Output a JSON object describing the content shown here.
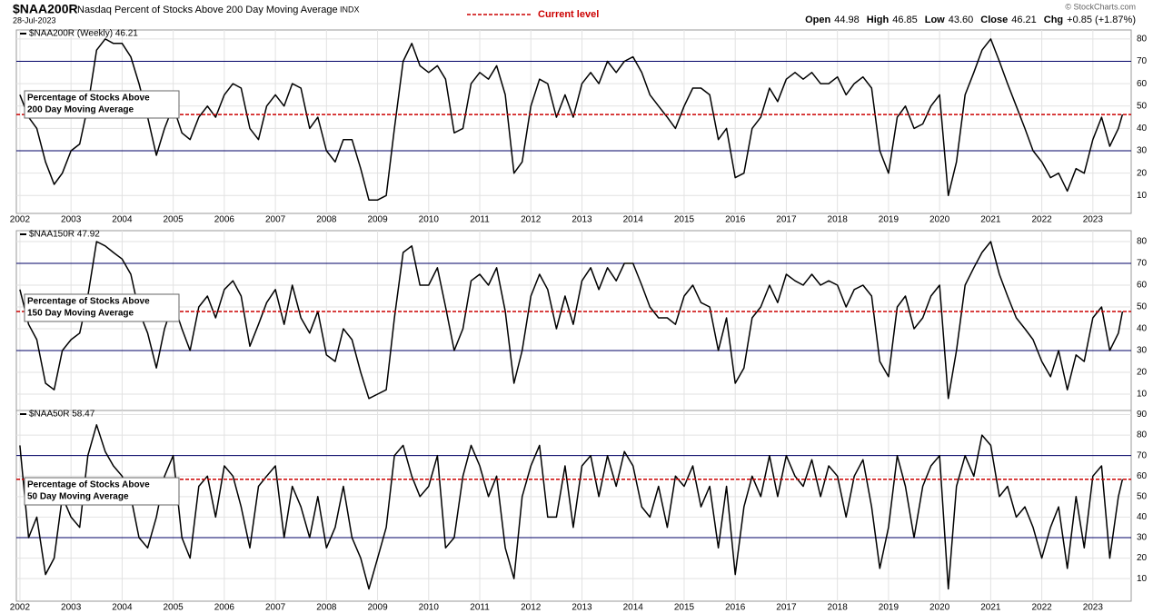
{
  "header": {
    "symbol": "$NAA200R",
    "subtitle": "Nasdaq Percent of Stocks Above 200 Day Moving Average",
    "exchange": "INDX",
    "date": "28-Jul-2023",
    "legend": "Current level",
    "copyright": "© StockCharts.com",
    "quote": [
      [
        "Open",
        "44.98"
      ],
      [
        "High",
        "46.85"
      ],
      [
        "Low",
        "43.60"
      ],
      [
        "Close",
        "46.21"
      ],
      [
        "Chg",
        "+0.85 (+1.87%)"
      ]
    ]
  },
  "chart_data": [
    {
      "type": "line",
      "box": [
        "Percentage of Stocks Above",
        "200 Day Moving Average"
      ],
      "x": [
        2002,
        2002.17,
        2002.33,
        2002.5,
        2002.67,
        2002.83,
        2003,
        2003.17,
        2003.33,
        2003.5,
        2003.67,
        2003.83,
        2004,
        2004.17,
        2004.33,
        2004.5,
        2004.67,
        2004.83,
        2005,
        2005.17,
        2005.33,
        2005.5,
        2005.67,
        2005.83,
        2006,
        2006.17,
        2006.33,
        2006.5,
        2006.67,
        2006.83,
        2007,
        2007.17,
        2007.33,
        2007.5,
        2007.67,
        2007.83,
        2008,
        2008.17,
        2008.33,
        2008.5,
        2008.67,
        2008.83,
        2009,
        2009.17,
        2009.33,
        2009.5,
        2009.67,
        2009.83,
        2010,
        2010.17,
        2010.33,
        2010.5,
        2010.67,
        2010.83,
        2011,
        2011.17,
        2011.33,
        2011.5,
        2011.67,
        2011.83,
        2012,
        2012.17,
        2012.33,
        2012.5,
        2012.67,
        2012.83,
        2013,
        2013.17,
        2013.33,
        2013.5,
        2013.67,
        2013.83,
        2014,
        2014.17,
        2014.33,
        2014.5,
        2014.67,
        2014.83,
        2015,
        2015.17,
        2015.33,
        2015.5,
        2015.67,
        2015.83,
        2016,
        2016.17,
        2016.33,
        2016.5,
        2016.67,
        2016.83,
        2017,
        2017.17,
        2017.33,
        2017.5,
        2017.67,
        2017.83,
        2018,
        2018.17,
        2018.33,
        2018.5,
        2018.67,
        2018.83,
        2019,
        2019.17,
        2019.33,
        2019.5,
        2019.67,
        2019.83,
        2020,
        2020.17,
        2020.33,
        2020.5,
        2020.67,
        2020.83,
        2021,
        2021.17,
        2021.33,
        2021.5,
        2021.67,
        2021.83,
        2022,
        2022.17,
        2022.33,
        2022.5,
        2022.67,
        2022.83,
        2023,
        2023.17,
        2023.33,
        2023.5,
        2023.58
      ],
      "series": [
        {
          "name": "$NAA200R (Weekly) 46.21",
          "color": "#000000",
          "values": [
            55,
            45,
            40,
            25,
            15,
            20,
            30,
            33,
            50,
            75,
            80,
            78,
            78,
            72,
            60,
            45,
            28,
            40,
            50,
            38,
            35,
            45,
            50,
            45,
            55,
            60,
            58,
            40,
            35,
            50,
            55,
            50,
            60,
            58,
            40,
            45,
            30,
            25,
            35,
            35,
            22,
            8,
            8,
            10,
            40,
            70,
            78,
            68,
            65,
            68,
            62,
            38,
            40,
            60,
            65,
            62,
            68,
            55,
            20,
            25,
            50,
            62,
            60,
            45,
            55,
            45,
            60,
            65,
            60,
            70,
            65,
            70,
            72,
            65,
            55,
            50,
            45,
            40,
            50,
            58,
            58,
            55,
            35,
            40,
            18,
            20,
            40,
            45,
            58,
            52,
            62,
            65,
            62,
            65,
            60,
            60,
            63,
            55,
            60,
            63,
            58,
            30,
            20,
            45,
            50,
            40,
            42,
            50,
            55,
            10,
            25,
            55,
            65,
            75,
            80,
            70,
            60,
            50,
            40,
            30,
            25,
            18,
            20,
            12,
            22,
            20,
            35,
            45,
            32,
            40,
            46.21
          ]
        }
      ],
      "xlim": [
        2001.93,
        2023.75
      ],
      "xticks": [
        2002,
        2003,
        2004,
        2005,
        2006,
        2007,
        2008,
        2009,
        2010,
        2011,
        2012,
        2013,
        2014,
        2015,
        2016,
        2017,
        2018,
        2019,
        2020,
        2021,
        2022,
        2023
      ],
      "ylim": [
        2,
        84
      ],
      "yticks": [
        10,
        20,
        30,
        40,
        50,
        60,
        70,
        80
      ],
      "levels": [
        30,
        70
      ],
      "current": 46.21,
      "grid": true
    },
    {
      "type": "line",
      "box": [
        "Percentage of Stocks Above",
        "150 Day Moving Average"
      ],
      "x": [
        2002,
        2002.17,
        2002.33,
        2002.5,
        2002.67,
        2002.83,
        2003,
        2003.17,
        2003.33,
        2003.5,
        2003.67,
        2003.83,
        2004,
        2004.17,
        2004.33,
        2004.5,
        2004.67,
        2004.83,
        2005,
        2005.17,
        2005.33,
        2005.5,
        2005.67,
        2005.83,
        2006,
        2006.17,
        2006.33,
        2006.5,
        2006.67,
        2006.83,
        2007,
        2007.17,
        2007.33,
        2007.5,
        2007.67,
        2007.83,
        2008,
        2008.17,
        2008.33,
        2008.5,
        2008.67,
        2008.83,
        2009,
        2009.17,
        2009.33,
        2009.5,
        2009.67,
        2009.83,
        2010,
        2010.17,
        2010.33,
        2010.5,
        2010.67,
        2010.83,
        2011,
        2011.17,
        2011.33,
        2011.5,
        2011.67,
        2011.83,
        2012,
        2012.17,
        2012.33,
        2012.5,
        2012.67,
        2012.83,
        2013,
        2013.17,
        2013.33,
        2013.5,
        2013.67,
        2013.83,
        2014,
        2014.17,
        2014.33,
        2014.5,
        2014.67,
        2014.83,
        2015,
        2015.17,
        2015.33,
        2015.5,
        2015.67,
        2015.83,
        2016,
        2016.17,
        2016.33,
        2016.5,
        2016.67,
        2016.83,
        2017,
        2017.17,
        2017.33,
        2017.5,
        2017.67,
        2017.83,
        2018,
        2018.17,
        2018.33,
        2018.5,
        2018.67,
        2018.83,
        2019,
        2019.17,
        2019.33,
        2019.5,
        2019.67,
        2019.83,
        2020,
        2020.17,
        2020.33,
        2020.5,
        2020.67,
        2020.83,
        2021,
        2021.17,
        2021.33,
        2021.5,
        2021.67,
        2021.83,
        2022,
        2022.17,
        2022.33,
        2022.5,
        2022.67,
        2022.83,
        2023,
        2023.17,
        2023.33,
        2023.5,
        2023.58
      ],
      "series": [
        {
          "name": "$NAA150R 47.92",
          "color": "#000000",
          "values": [
            58,
            42,
            35,
            15,
            12,
            30,
            35,
            38,
            55,
            80,
            78,
            75,
            72,
            65,
            48,
            38,
            22,
            40,
            52,
            40,
            30,
            50,
            55,
            45,
            58,
            62,
            55,
            32,
            42,
            52,
            58,
            42,
            60,
            45,
            38,
            48,
            28,
            25,
            40,
            35,
            20,
            8,
            10,
            12,
            45,
            75,
            78,
            60,
            60,
            68,
            50,
            30,
            40,
            62,
            65,
            60,
            68,
            48,
            15,
            30,
            55,
            65,
            58,
            40,
            55,
            42,
            62,
            68,
            58,
            68,
            62,
            70,
            70,
            60,
            50,
            45,
            45,
            42,
            55,
            60,
            52,
            50,
            30,
            45,
            15,
            22,
            45,
            50,
            60,
            52,
            65,
            62,
            60,
            65,
            60,
            62,
            60,
            50,
            58,
            60,
            55,
            25,
            18,
            50,
            55,
            40,
            45,
            55,
            60,
            8,
            30,
            60,
            68,
            75,
            80,
            65,
            55,
            45,
            40,
            35,
            25,
            18,
            30,
            12,
            28,
            25,
            45,
            50,
            30,
            38,
            47.92
          ]
        }
      ],
      "xlim": [
        2001.93,
        2023.75
      ],
      "xticks": [
        2002,
        2003,
        2004,
        2005,
        2006,
        2007,
        2008,
        2009,
        2010,
        2011,
        2012,
        2013,
        2014,
        2015,
        2016,
        2017,
        2018,
        2019,
        2020,
        2021,
        2022,
        2023
      ],
      "ylim": [
        2.5,
        85
      ],
      "yticks": [
        10,
        20,
        30,
        40,
        50,
        60,
        70,
        80
      ],
      "levels": [
        30,
        70
      ],
      "current": 47.92,
      "grid": true
    },
    {
      "type": "line",
      "box": [
        "Percentage of Stocks Above",
        "50 Day Moving Average"
      ],
      "x": [
        2002,
        2002.17,
        2002.33,
        2002.5,
        2002.67,
        2002.83,
        2003,
        2003.17,
        2003.33,
        2003.5,
        2003.67,
        2003.83,
        2004,
        2004.17,
        2004.33,
        2004.5,
        2004.67,
        2004.83,
        2005,
        2005.17,
        2005.33,
        2005.5,
        2005.67,
        2005.83,
        2006,
        2006.17,
        2006.33,
        2006.5,
        2006.67,
        2006.83,
        2007,
        2007.17,
        2007.33,
        2007.5,
        2007.67,
        2007.83,
        2008,
        2008.17,
        2008.33,
        2008.5,
        2008.67,
        2008.83,
        2009,
        2009.17,
        2009.33,
        2009.5,
        2009.67,
        2009.83,
        2010,
        2010.17,
        2010.33,
        2010.5,
        2010.67,
        2010.83,
        2011,
        2011.17,
        2011.33,
        2011.5,
        2011.67,
        2011.83,
        2012,
        2012.17,
        2012.33,
        2012.5,
        2012.67,
        2012.83,
        2013,
        2013.17,
        2013.33,
        2013.5,
        2013.67,
        2013.83,
        2014,
        2014.17,
        2014.33,
        2014.5,
        2014.67,
        2014.83,
        2015,
        2015.17,
        2015.33,
        2015.5,
        2015.67,
        2015.83,
        2016,
        2016.17,
        2016.33,
        2016.5,
        2016.67,
        2016.83,
        2017,
        2017.17,
        2017.33,
        2017.5,
        2017.67,
        2017.83,
        2018,
        2018.17,
        2018.33,
        2018.5,
        2018.67,
        2018.83,
        2019,
        2019.17,
        2019.33,
        2019.5,
        2019.67,
        2019.83,
        2020,
        2020.17,
        2020.33,
        2020.5,
        2020.67,
        2020.83,
        2021,
        2021.17,
        2021.33,
        2021.5,
        2021.67,
        2021.83,
        2022,
        2022.17,
        2022.33,
        2022.5,
        2022.67,
        2022.83,
        2023,
        2023.17,
        2023.33,
        2023.5,
        2023.58
      ],
      "series": [
        {
          "name": "$NAA50R 58.47",
          "color": "#000000",
          "values": [
            75,
            30,
            40,
            12,
            20,
            50,
            40,
            35,
            70,
            85,
            72,
            65,
            60,
            50,
            30,
            25,
            40,
            60,
            70,
            30,
            20,
            55,
            60,
            40,
            65,
            60,
            45,
            25,
            55,
            60,
            65,
            30,
            55,
            45,
            30,
            50,
            25,
            35,
            55,
            30,
            20,
            5,
            20,
            35,
            70,
            75,
            60,
            50,
            55,
            70,
            25,
            30,
            60,
            75,
            65,
            50,
            60,
            25,
            10,
            50,
            65,
            75,
            40,
            40,
            65,
            35,
            65,
            70,
            50,
            70,
            55,
            72,
            65,
            45,
            40,
            55,
            35,
            60,
            55,
            65,
            45,
            55,
            25,
            55,
            12,
            45,
            60,
            50,
            70,
            50,
            70,
            60,
            55,
            68,
            50,
            65,
            60,
            40,
            60,
            68,
            45,
            15,
            35,
            70,
            55,
            30,
            55,
            65,
            70,
            5,
            55,
            70,
            60,
            80,
            75,
            50,
            55,
            40,
            45,
            35,
            20,
            35,
            45,
            15,
            50,
            25,
            60,
            65,
            20,
            50,
            58.47
          ]
        }
      ],
      "xlim": [
        2001.93,
        2023.75
      ],
      "xticks": [
        2002,
        2003,
        2004,
        2005,
        2006,
        2007,
        2008,
        2009,
        2010,
        2011,
        2012,
        2013,
        2014,
        2015,
        2016,
        2017,
        2018,
        2019,
        2020,
        2021,
        2022,
        2023
      ],
      "ylim": [
        -1,
        92
      ],
      "yticks": [
        10,
        20,
        30,
        40,
        50,
        60,
        70,
        80,
        90
      ],
      "levels": [
        30,
        70
      ],
      "current": 58.47,
      "grid": true
    }
  ]
}
